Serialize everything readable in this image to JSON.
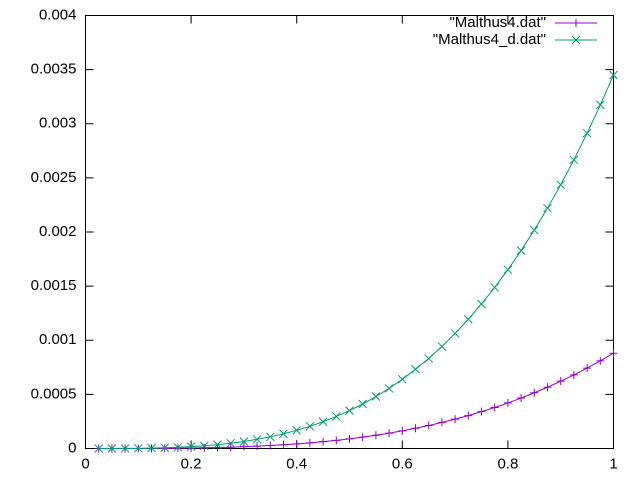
{
  "chart_data": {
    "type": "line",
    "x": [
      0.025,
      0.05,
      0.075,
      0.1,
      0.125,
      0.15,
      0.175,
      0.2,
      0.225,
      0.25,
      0.275,
      0.3,
      0.325,
      0.35,
      0.375,
      0.4,
      0.425,
      0.45,
      0.475,
      0.5,
      0.525,
      0.55,
      0.575,
      0.6,
      0.625,
      0.65,
      0.675,
      0.7,
      0.725,
      0.75,
      0.775,
      0.8,
      0.825,
      0.85,
      0.875,
      0.9,
      0.925,
      0.95,
      0.975,
      1
    ],
    "series": [
      {
        "name": "\"Malthus4.dat\"",
        "color": "#9400d3",
        "marker": "plus",
        "values": [
          4.6e-09,
          4.5e-08,
          1.7e-07,
          4.4e-07,
          9.2e-07,
          1.7e-06,
          2.8e-06,
          4.3e-06,
          6.4e-06,
          9.1e-06,
          1.2e-05,
          1.7e-05,
          2.2e-05,
          2.8e-05,
          3.5e-05,
          4.3e-05,
          5.2e-05,
          6.3e-05,
          7.5e-05,
          8.9e-05,
          0.000105,
          0.000122,
          0.000142,
          0.000163,
          0.000187,
          0.000212,
          0.000241,
          0.000271,
          0.000304,
          0.000341,
          0.000379,
          0.000421,
          0.000466,
          0.000515,
          0.000566,
          0.000622,
          0.00068,
          0.000743,
          0.00081,
          0.00088
        ]
      },
      {
        "name": "\"Malthus4_d.dat\"",
        "color": "#009e73",
        "marker": "cross",
        "values": [
          2e-08,
          1.8e-07,
          6.7e-07,
          1.7e-06,
          3.6e-06,
          6.6e-06,
          1.1e-05,
          1.7e-05,
          2.5e-05,
          3.6e-05,
          4.9e-05,
          6.5e-05,
          8.5e-05,
          0.000108,
          0.000136,
          0.000168,
          0.000205,
          0.000247,
          0.000296,
          0.00035,
          0.000411,
          0.00048,
          0.000555,
          0.000639,
          0.000732,
          0.000832,
          0.000943,
          0.001063,
          0.001194,
          0.001335,
          0.001488,
          0.001652,
          0.001829,
          0.002018,
          0.00222,
          0.002437,
          0.002667,
          0.002913,
          0.003174,
          0.00345
        ]
      }
    ],
    "xlim": [
      0,
      1
    ],
    "xticks": [
      0,
      0.2,
      0.4,
      0.6,
      0.8,
      1
    ],
    "ylim": [
      0,
      0.004
    ],
    "yticks": [
      0,
      0.0005,
      0.001,
      0.0015,
      0.002,
      0.0025,
      0.003,
      0.0035,
      0.004
    ],
    "legend": "top-right"
  }
}
